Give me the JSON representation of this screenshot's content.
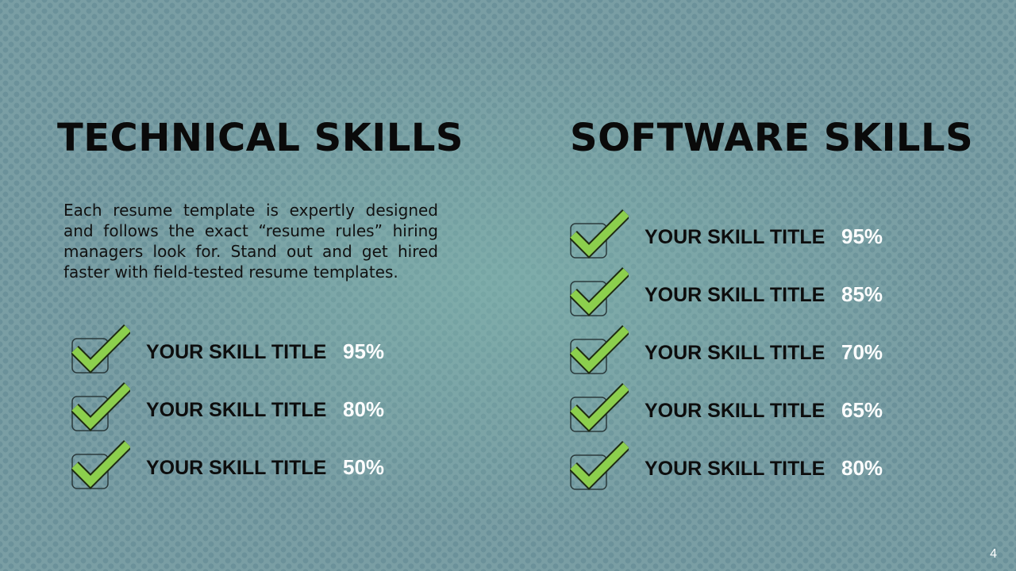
{
  "technical": {
    "heading": "TECHNICAL SKILLS",
    "description": "Each resume template is expertly designed and follows the exact “resume rules” hiring managers look for. Stand out and get hired faster with field-tested resume templates.",
    "skills": [
      {
        "title": "YOUR SKILL TITLE",
        "percent": "95%"
      },
      {
        "title": "YOUR SKILL TITLE",
        "percent": "80%"
      },
      {
        "title": "YOUR SKILL TITLE",
        "percent": "50%"
      }
    ]
  },
  "software": {
    "heading": "SOFTWARE SKILLS",
    "skills": [
      {
        "title": "YOUR SKILL TITLE",
        "percent": "95%"
      },
      {
        "title": "YOUR SKILL TITLE",
        "percent": "85%"
      },
      {
        "title": "YOUR SKILL TITLE",
        "percent": "70%"
      },
      {
        "title": "YOUR SKILL TITLE",
        "percent": "65%"
      },
      {
        "title": "YOUR SKILL TITLE",
        "percent": "80%"
      }
    ]
  },
  "icons": {
    "checkbox": "checked-box-icon"
  },
  "colors": {
    "check": "#8ccf4d",
    "background": "#7a9ea4",
    "heading": "#0a0a0a",
    "percent": "#ffffff"
  },
  "page_number": "4"
}
